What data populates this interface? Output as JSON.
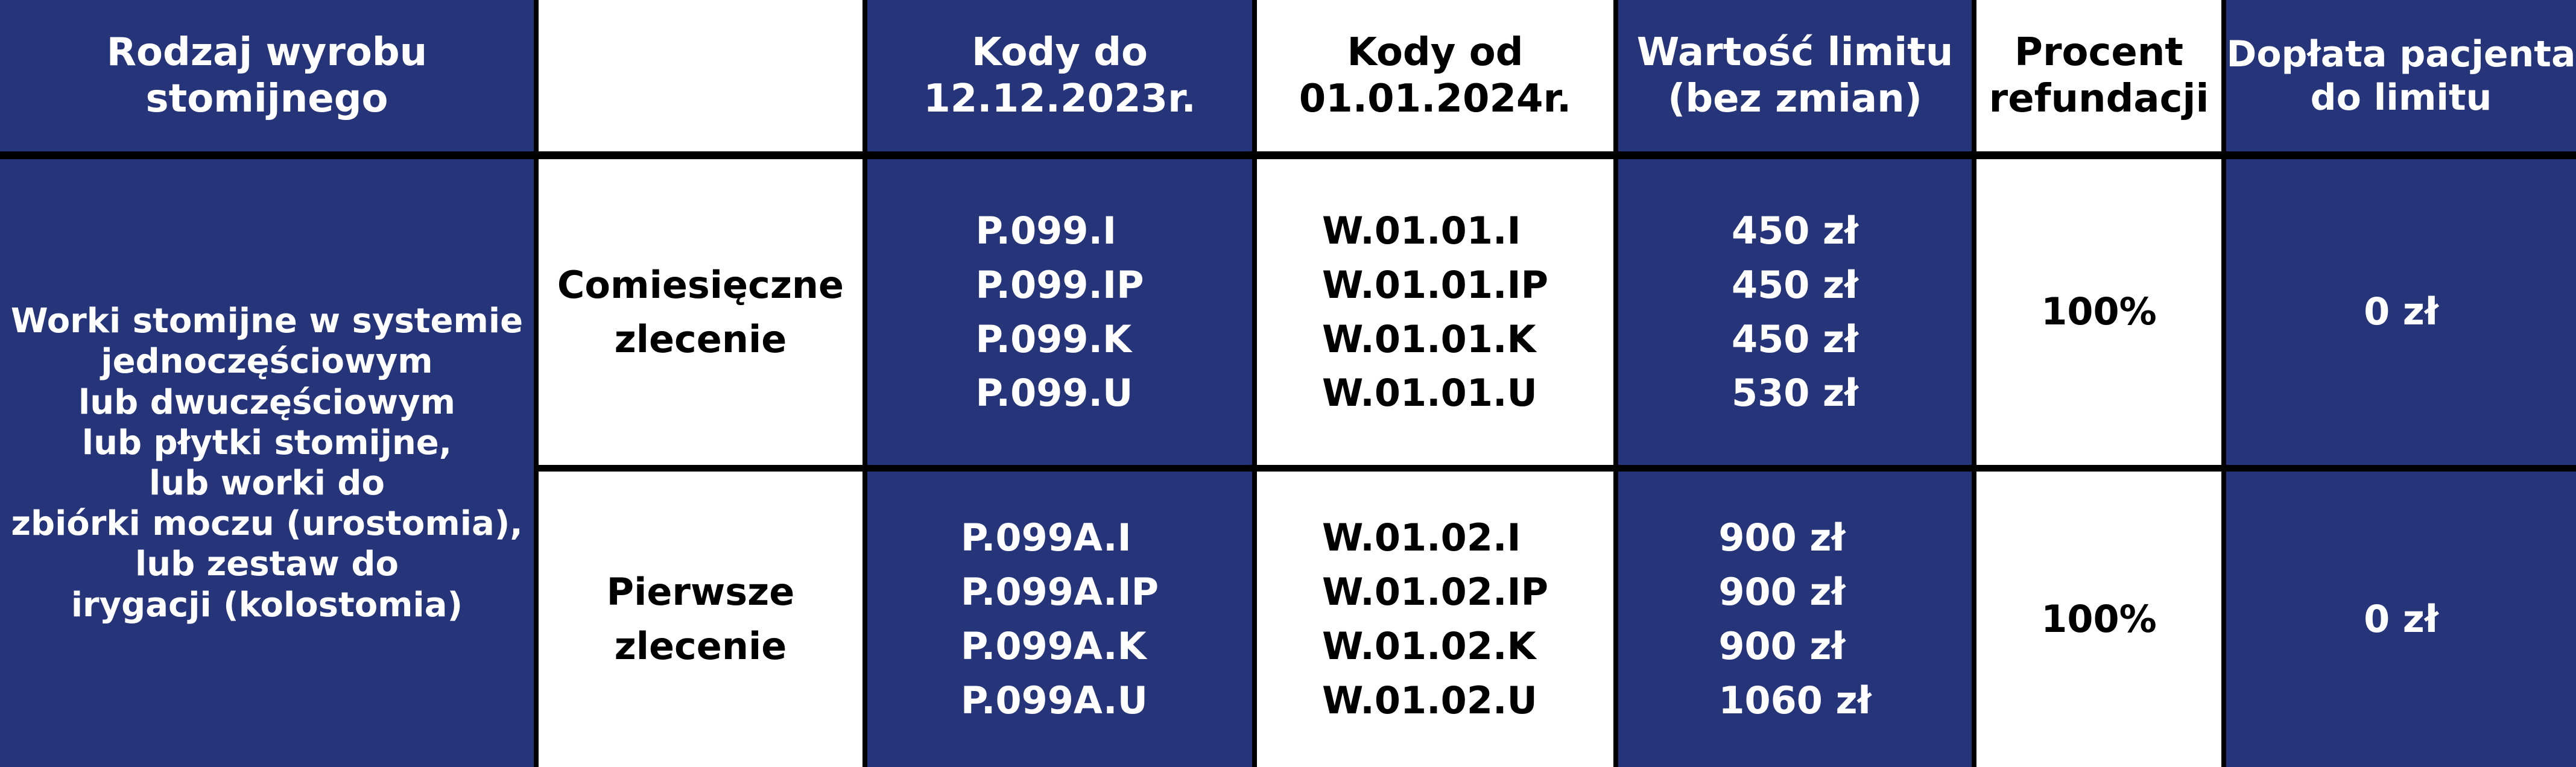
{
  "table": {
    "header": {
      "product_type": [
        "Rodzaj wyrobu",
        "stomijnego"
      ],
      "codes_until": [
        "Kody do",
        "12.12.2023r."
      ],
      "codes_from": [
        "Kody od",
        "01.01.2024r."
      ],
      "limit_value": [
        "Wartość limitu",
        "(bez zmian)"
      ],
      "refund_percent": [
        "Procent",
        "refundacji"
      ],
      "patient_copay": [
        "Dopłata pacjenta",
        "do limitu"
      ]
    },
    "product": [
      "Worki stomijne w systemie",
      "jednoczęściowym",
      "lub dwuczęściowym",
      "lub płytki stomijne,",
      "lub worki do",
      "zbiórki moczu (urostomia),",
      "lub zestaw do",
      "irygacji (kolostomia)"
    ],
    "rows": [
      {
        "order": [
          "Comiesięczne",
          "zlecenie"
        ],
        "codes_until": [
          "P.099.I",
          "P.099.IP",
          "P.099.K",
          "P.099.U"
        ],
        "codes_from": [
          "W.01.01.I",
          "W.01.01.IP",
          "W.01.01.K",
          "W.01.01.U"
        ],
        "limit_value": [
          "450 zł",
          "450 zł",
          "450 zł",
          "530 zł"
        ],
        "refund_percent": "100%",
        "patient_copay": "0 zł"
      },
      {
        "order": [
          "Pierwsze",
          "zlecenie"
        ],
        "codes_until": [
          "P.099A.I",
          "P.099A.IP",
          "P.099A.K",
          "P.099A.U"
        ],
        "codes_from": [
          "W.01.02.I",
          "W.01.02.IP",
          "W.01.02.K",
          "W.01.02.U"
        ],
        "limit_value": [
          "900 zł",
          "900 zł",
          "900 zł",
          "1060 zł"
        ],
        "refund_percent": "100%",
        "patient_copay": "0 zł"
      }
    ]
  }
}
